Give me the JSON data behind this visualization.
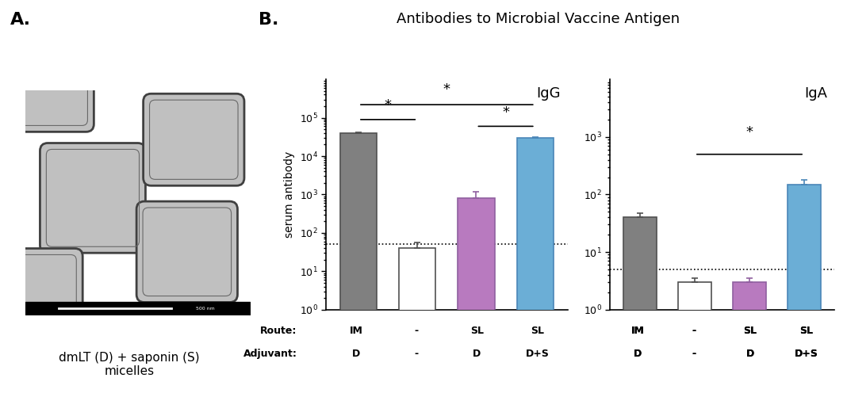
{
  "title_b": "Antibodies to Microbial Vaccine Antigen",
  "igg_label": "IgG",
  "iga_label": "IgA",
  "ylabel": "serum antibody",
  "igg_bars": [
    40000,
    40,
    800,
    30000
  ],
  "igg_errors": [
    1500,
    15,
    400,
    1500
  ],
  "iga_bars": [
    40,
    3,
    3,
    150
  ],
  "iga_errors": [
    8,
    0.5,
    0.5,
    30
  ],
  "bar_colors": [
    "#808080",
    "#ffffff",
    "#b87abf",
    "#6baed6"
  ],
  "bar_edgecolors": [
    "#505050",
    "#505050",
    "#9060a0",
    "#4a86b8"
  ],
  "igg_ylim": [
    1,
    1000000
  ],
  "iga_ylim": [
    1,
    10000
  ],
  "dotted_line_igg": 50,
  "dotted_line_iga": 5,
  "route_labels": [
    "IM",
    "-",
    "SL",
    "SL"
  ],
  "adjuvant_labels": [
    "D",
    "-",
    "D",
    "D+S"
  ],
  "label_a": "A.",
  "label_b": "B.",
  "caption": "dmLT (D) + saponin (S)\nmicelles",
  "bg_color": "#ffffff",
  "igg_yticks": [
    1,
    10,
    100,
    1000,
    10000,
    100000
  ],
  "iga_yticks": [
    1,
    10,
    100,
    1000
  ]
}
